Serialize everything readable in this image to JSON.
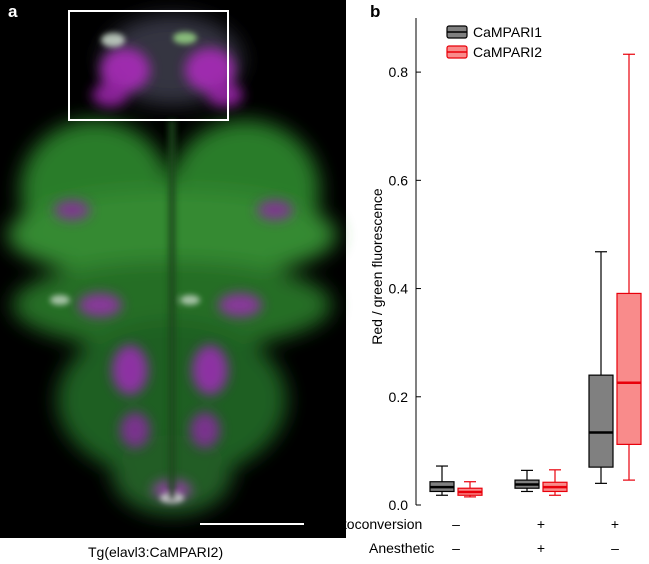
{
  "panel_a": {
    "letter": "a",
    "caption": "Tg(elavl3:CaMPARI2)"
  },
  "panel_b": {
    "letter": "b"
  },
  "conditions": {
    "photoconversion_label": "Photoconversion",
    "anesthetic_label": "Anesthetic",
    "photoconversion_values": [
      "–",
      "+",
      "+"
    ],
    "anesthetic_values": [
      "–",
      "+",
      "–"
    ]
  },
  "chart_data": {
    "type": "box",
    "ylabel": "Red / green fluorescence",
    "ylim": [
      0,
      0.9
    ],
    "yticks": [
      0.0,
      0.2,
      0.4,
      0.6,
      0.8
    ],
    "ytick_labels": [
      "0.0",
      "0.2",
      "0.4",
      "0.6",
      "0.8"
    ],
    "legend_position": "top-left",
    "series": [
      {
        "name": "CaMPARI1",
        "fill": "#808080",
        "stroke": "#000000",
        "boxes": [
          {
            "whisker_low": 0.018,
            "q1": 0.025,
            "median": 0.033,
            "q3": 0.043,
            "whisker_high": 0.072
          },
          {
            "whisker_low": 0.025,
            "q1": 0.031,
            "median": 0.038,
            "q3": 0.046,
            "whisker_high": 0.064
          },
          {
            "whisker_low": 0.04,
            "q1": 0.07,
            "median": 0.134,
            "q3": 0.24,
            "whisker_high": 0.468
          }
        ]
      },
      {
        "name": "CaMPARI2",
        "fill": "#f98b8b",
        "stroke": "#e8000b",
        "boxes": [
          {
            "whisker_low": 0.015,
            "q1": 0.018,
            "median": 0.024,
            "q3": 0.031,
            "whisker_high": 0.043
          },
          {
            "whisker_low": 0.018,
            "q1": 0.025,
            "median": 0.033,
            "q3": 0.042,
            "whisker_high": 0.065
          },
          {
            "whisker_low": 0.046,
            "q1": 0.112,
            "median": 0.226,
            "q3": 0.391,
            "whisker_high": 0.833
          }
        ]
      }
    ]
  }
}
